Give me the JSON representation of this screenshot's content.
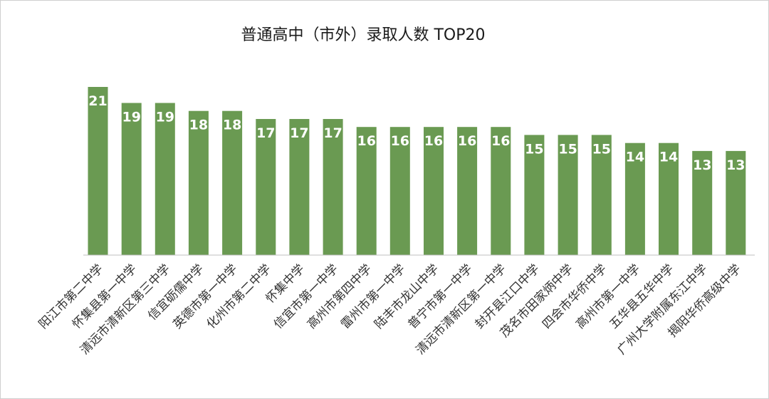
{
  "chart_data": {
    "type": "bar",
    "title": "普通高中（市外）录取人数 TOP20",
    "categories": [
      "阳江市第二中学",
      "怀集县第一中学",
      "清远市清新区第三中学",
      "信宜砺儒中学",
      "英德市第一中学",
      "化州市第二中学",
      "怀集中学",
      "信宜市第一中学",
      "高州市第四中学",
      "雷州市第一中学",
      "陆丰市龙山中学",
      "普宁市第一中学",
      "清远市清新区第一中学",
      "封开县江口中学",
      "茂名市田家炳中学",
      "四会市华侨中学",
      "高州市第一中学",
      "五华县五华中学",
      "广州大学附属东江中学",
      "揭阳华侨高级中学"
    ],
    "values": [
      21,
      19,
      19,
      18,
      18,
      17,
      17,
      17,
      16,
      16,
      16,
      16,
      16,
      15,
      15,
      15,
      14,
      14,
      13,
      13
    ],
    "ylim": [
      0,
      21
    ],
    "xlabel": "",
    "ylabel": "",
    "grid": false,
    "legend": "none",
    "bar_color": "#6a9a52",
    "label_color": "#ffffff"
  }
}
